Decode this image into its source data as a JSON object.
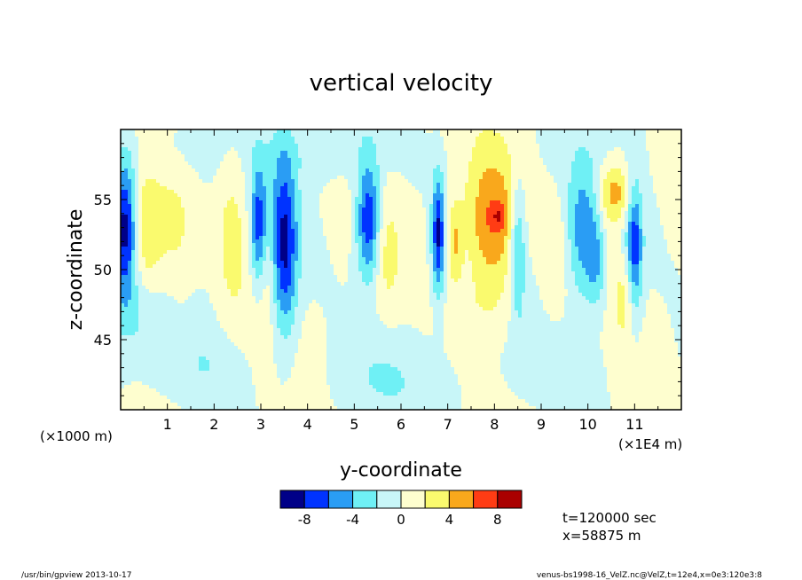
{
  "chart_data": {
    "type": "heatmap",
    "title": "vertical velocity",
    "xlabel": "y-coordinate",
    "ylabel": "z-coordinate",
    "x_scale_note_left": "(×1000 m)",
    "x_scale_note_right": "(×1E4 m)",
    "xlim": [
      0,
      12
    ],
    "ylim": [
      40,
      60
    ],
    "x_ticks": [
      1,
      2,
      3,
      4,
      5,
      6,
      7,
      8,
      9,
      10,
      11
    ],
    "y_ticks": [
      45,
      50,
      55
    ],
    "color_levels": [
      -10,
      -8,
      -6,
      -4,
      -2,
      0,
      2,
      4,
      6,
      8,
      10
    ],
    "colorbar_labels": [
      "-8",
      "-4",
      "0",
      "4",
      "8"
    ],
    "colors": [
      "#000088",
      "#0033ff",
      "#2a9df4",
      "#6ff0f5",
      "#c8f6f8",
      "#fefecf",
      "#fafa6e",
      "#f9a81c",
      "#ff3c14",
      "#aa0000"
    ],
    "blobs": [
      {
        "x": 0.1,
        "z": 53.0,
        "sx": 0.18,
        "sz": 3.5,
        "a": -9
      },
      {
        "x": 0.55,
        "z": 52.5,
        "sx": 0.25,
        "sz": 3.0,
        "a": 4.2
      },
      {
        "x": 1.2,
        "z": 52.0,
        "sx": 0.3,
        "sz": 4.0,
        "a": 2.2
      },
      {
        "x": 2.4,
        "z": 53.0,
        "sx": 0.25,
        "sz": 4.5,
        "a": 3.0
      },
      {
        "x": 2.95,
        "z": 53.0,
        "sx": 0.12,
        "sz": 3.0,
        "a": -7
      },
      {
        "x": 3.5,
        "z": 51.5,
        "sx": 0.2,
        "sz": 4.5,
        "a": -8.5
      },
      {
        "x": 3.15,
        "z": 50.0,
        "sx": 0.18,
        "sz": 3.0,
        "a": 2.0
      },
      {
        "x": 5.3,
        "z": 53.5,
        "sx": 0.18,
        "sz": 3.0,
        "a": -8.5
      },
      {
        "x": 5.7,
        "z": 51.0,
        "sx": 0.2,
        "sz": 3.0,
        "a": 2.0
      },
      {
        "x": 6.8,
        "z": 52.5,
        "sx": 0.1,
        "sz": 3.0,
        "a": -8.5
      },
      {
        "x": 7.15,
        "z": 52.0,
        "sx": 0.12,
        "sz": 2.0,
        "a": 4.0
      },
      {
        "x": 7.95,
        "z": 53.2,
        "sx": 0.4,
        "sz": 3.5,
        "a": 6.5
      },
      {
        "x": 8.1,
        "z": 53.8,
        "sx": 0.1,
        "sz": 0.6,
        "a": 3.0
      },
      {
        "x": 8.5,
        "z": 51.5,
        "sx": 0.12,
        "sz": 3.5,
        "a": -5.5
      },
      {
        "x": 9.3,
        "z": 51.0,
        "sx": 0.18,
        "sz": 3.0,
        "a": 2.0
      },
      {
        "x": 9.9,
        "z": 52.5,
        "sx": 0.25,
        "sz": 3.5,
        "a": -5
      },
      {
        "x": 10.2,
        "z": 50.5,
        "sx": 0.15,
        "sz": 2.5,
        "a": -4
      },
      {
        "x": 10.6,
        "z": 55.5,
        "sx": 0.25,
        "sz": 1.5,
        "a": 5.0
      },
      {
        "x": 10.35,
        "z": 53.0,
        "sx": 0.2,
        "sz": 3.0,
        "a": 2.0
      },
      {
        "x": 11.0,
        "z": 51.5,
        "sx": 0.12,
        "sz": 3.5,
        "a": -7
      },
      {
        "x": 10.8,
        "z": 48.0,
        "sx": 0.15,
        "sz": 2.0,
        "a": 2.5
      },
      {
        "x": 1.9,
        "z": 43.0,
        "sx": 0.6,
        "sz": 2.0,
        "a": -1.6
      },
      {
        "x": 5.5,
        "z": 42.5,
        "sx": 0.8,
        "sz": 2.0,
        "a": -1.4
      },
      {
        "x": 9.5,
        "z": 43.0,
        "sx": 0.7,
        "sz": 2.0,
        "a": -1.5
      },
      {
        "x": 4.3,
        "z": 58.5,
        "sx": 1.0,
        "sz": 1.5,
        "a": -1.3
      },
      {
        "x": 1.0,
        "z": 58.5,
        "sx": 0.8,
        "sz": 1.5,
        "a": -1.2
      },
      {
        "x": 7.8,
        "z": 47.0,
        "sx": 0.6,
        "sz": 2.0,
        "a": 1.5
      },
      {
        "x": 0.3,
        "z": 46.5,
        "sx": 0.5,
        "sz": 2.0,
        "a": -1.5
      }
    ]
  },
  "annotations": {
    "time": "t=120000  sec",
    "position": "x=58875  m"
  },
  "footer": {
    "left": "/usr/bin/gpview   2013-10-17",
    "right": "venus-bs1998-16_VelZ.nc@VelZ,t=12e4,x=0e3:120e3:8"
  }
}
